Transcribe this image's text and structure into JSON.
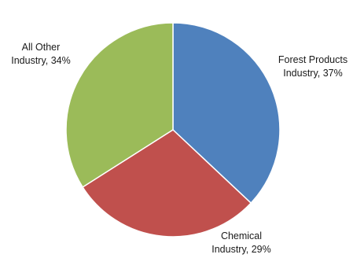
{
  "chart_data": {
    "type": "pie",
    "title": "",
    "start": "top",
    "direction": "clockwise",
    "slices": [
      {
        "label_lines": [
          "Forest Products",
          "Industry, 37%"
        ],
        "value": 37,
        "color": "#4F81BD"
      },
      {
        "label_lines": [
          "Chemical",
          "Industry, 29%"
        ],
        "value": 29,
        "color": "#C0504D"
      },
      {
        "label_lines": [
          "All Other",
          "Industry, 34%"
        ],
        "value": 34,
        "color": "#9BBB59"
      }
    ]
  }
}
